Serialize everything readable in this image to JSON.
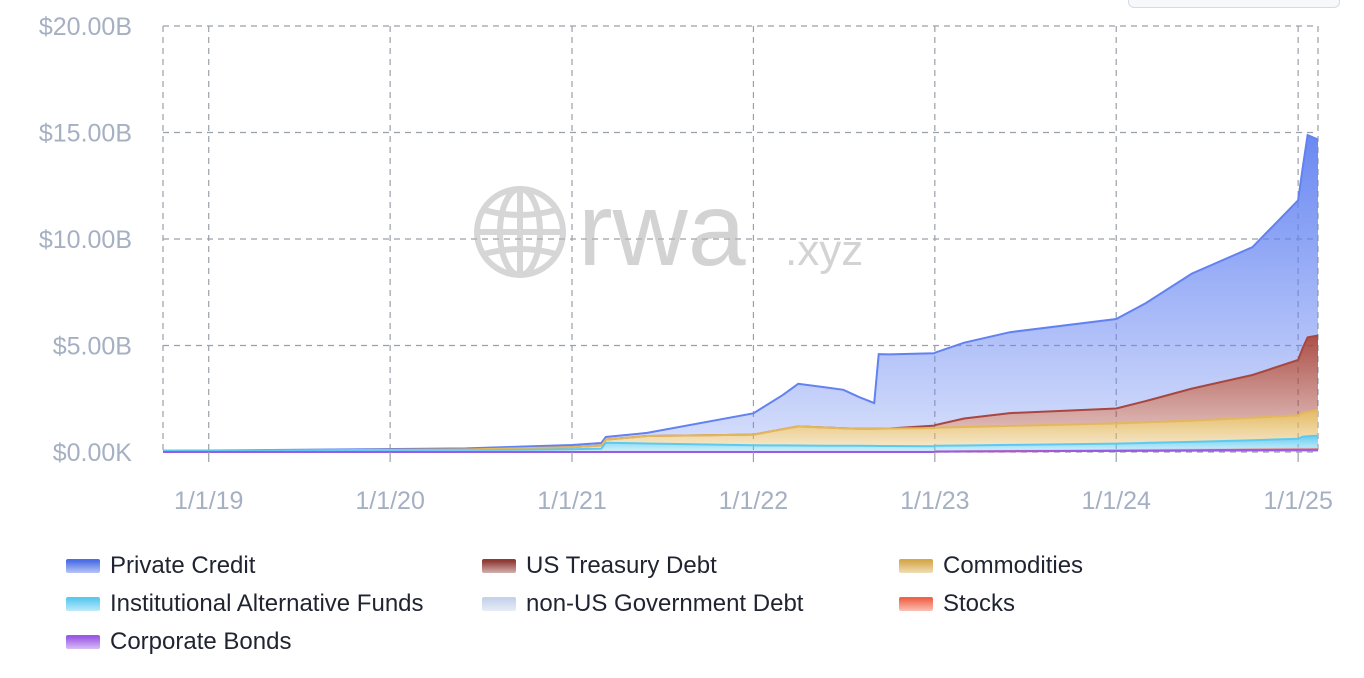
{
  "chart_data": {
    "type": "area",
    "stacked": true,
    "yaxis": {
      "ticks": [
        "$0.00K",
        "$5.00B",
        "$10.00B",
        "$15.00B",
        "$20.00B"
      ],
      "ylim": [
        0,
        20
      ],
      "unit": "B"
    },
    "xaxis": {
      "ticks": [
        "1/1/19",
        "1/1/20",
        "1/1/21",
        "1/1/22",
        "1/1/23",
        "1/1/24",
        "1/1/25"
      ],
      "range": [
        "2018-10-01",
        "2025-02-10"
      ]
    },
    "grid": true,
    "legend_position": "bottom",
    "watermark": "rwa.xyz",
    "series": [
      {
        "name": "Corporate Bonds",
        "color": "#9b59e6",
        "values": [
          [
            "2018-10-01",
            0
          ],
          [
            "2022-12-31",
            0
          ],
          [
            "2023-01-01",
            0.02
          ],
          [
            "2024-01-01",
            0.05
          ],
          [
            "2025-01-01",
            0.1
          ],
          [
            "2025-02-10",
            0.1
          ]
        ]
      },
      {
        "name": "Stocks",
        "color": "#f0654a",
        "values": [
          [
            "2018-10-01",
            0
          ],
          [
            "2023-01-01",
            0
          ],
          [
            "2025-02-10",
            0.02
          ]
        ]
      },
      {
        "name": "non-US Government Debt",
        "color": "#c5d3ea",
        "values": [
          [
            "2018-10-01",
            0
          ],
          [
            "2023-01-01",
            0.02
          ],
          [
            "2025-02-10",
            0.05
          ]
        ]
      },
      {
        "name": "Institutional Alternative Funds",
        "color": "#5ccaf0",
        "values": [
          [
            "2018-10-01",
            0.05
          ],
          [
            "2020-06-01",
            0.06
          ],
          [
            "2021-01-01",
            0.12
          ],
          [
            "2021-03-01",
            0.15
          ],
          [
            "2021-03-10",
            0.42
          ],
          [
            "2022-01-01",
            0.3
          ],
          [
            "2023-01-01",
            0.25
          ],
          [
            "2024-01-01",
            0.3
          ],
          [
            "2024-06-01",
            0.35
          ],
          [
            "2025-01-01",
            0.45
          ],
          [
            "2025-01-10",
            0.55
          ],
          [
            "2025-02-10",
            0.6
          ]
        ]
      },
      {
        "name": "Commodities",
        "color": "#e3b75c",
        "values": [
          [
            "2018-10-01",
            0
          ],
          [
            "2020-06-01",
            0.05
          ],
          [
            "2021-01-01",
            0.1
          ],
          [
            "2021-03-10",
            0.15
          ],
          [
            "2021-06-01",
            0.35
          ],
          [
            "2022-01-01",
            0.5
          ],
          [
            "2022-04-01",
            0.9
          ],
          [
            "2022-08-01",
            0.8
          ],
          [
            "2023-01-01",
            0.85
          ],
          [
            "2024-01-01",
            0.95
          ],
          [
            "2024-06-01",
            1.0
          ],
          [
            "2025-01-01",
            1.1
          ],
          [
            "2025-02-10",
            1.2
          ]
        ]
      },
      {
        "name": "US Treasury Debt",
        "color": "#a8473f",
        "values": [
          [
            "2018-10-01",
            0
          ],
          [
            "2022-06-01",
            0
          ],
          [
            "2022-10-01",
            0
          ],
          [
            "2023-01-01",
            0.12
          ],
          [
            "2023-03-01",
            0.4
          ],
          [
            "2023-06-01",
            0.6
          ],
          [
            "2024-01-01",
            0.7
          ],
          [
            "2024-03-01",
            1.0
          ],
          [
            "2024-06-01",
            1.5
          ],
          [
            "2024-10-01",
            2.0
          ],
          [
            "2025-01-01",
            2.6
          ],
          [
            "2025-01-20",
            3.5
          ],
          [
            "2025-02-10",
            3.5
          ]
        ]
      },
      {
        "name": "Private Credit",
        "color": "#6282f1",
        "values": [
          [
            "2018-10-01",
            0
          ],
          [
            "2020-06-01",
            0.05
          ],
          [
            "2021-01-01",
            0.1
          ],
          [
            "2021-06-01",
            0.15
          ],
          [
            "2022-01-01",
            1.0
          ],
          [
            "2022-03-01",
            1.6
          ],
          [
            "2022-04-01",
            2.0
          ],
          [
            "2022-07-01",
            1.8
          ],
          [
            "2022-09-01",
            1.2
          ],
          [
            "2022-09-10",
            3.5
          ],
          [
            "2023-01-01",
            3.4
          ],
          [
            "2023-06-01",
            3.8
          ],
          [
            "2024-01-01",
            4.2
          ],
          [
            "2024-03-01",
            4.6
          ],
          [
            "2024-06-01",
            5.4
          ],
          [
            "2024-10-01",
            6.0
          ],
          [
            "2025-01-01",
            7.5
          ],
          [
            "2025-01-20",
            9.5
          ],
          [
            "2025-02-10",
            9.2
          ]
        ]
      }
    ]
  },
  "legend": [
    {
      "label": "Private Credit",
      "color": "#4c6fe6"
    },
    {
      "label": "US Treasury Debt",
      "color": "#8f3a34"
    },
    {
      "label": "Commodities",
      "color": "#d6a94c"
    },
    {
      "label": "Institutional Alternative Funds",
      "color": "#5ccaf0"
    },
    {
      "label": "non-US Government Debt",
      "color": "#c5d3ea"
    },
    {
      "label": "Stocks",
      "color": "#f0654a"
    },
    {
      "label": "Corporate Bonds",
      "color": "#9b59e6"
    }
  ],
  "watermark": {
    "main": "rwa",
    "suffix": ".xyz",
    "icon": "globe-icon"
  }
}
